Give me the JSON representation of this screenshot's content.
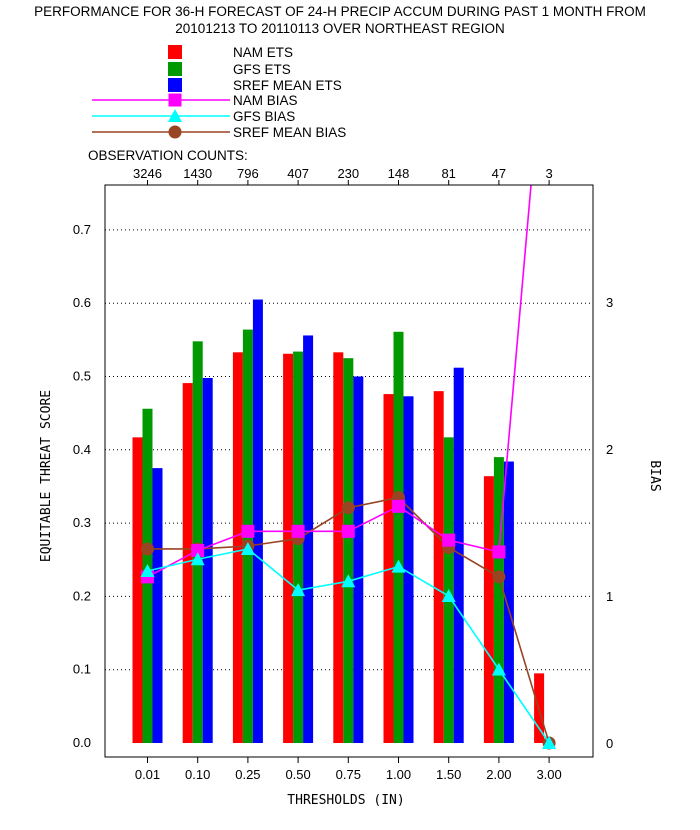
{
  "chart_data": {
    "type": "bar",
    "title_line1": "PERFORMANCE FOR 36-H FORECAST OF 24-H PRECIP ACCUM DURING PAST 1 MONTH FROM",
    "title_line2": "20101213 TO 20110113 OVER NORTHEAST REGION",
    "xlabel": "THRESHOLDS (IN)",
    "ylabel": "EQUITABLE THREAT SCORE",
    "y2label": "BIAS",
    "obs_label": "OBSERVATION COUNTS:",
    "categories": [
      "0.01",
      "0.10",
      "0.25",
      "0.50",
      "0.75",
      "1.00",
      "1.50",
      "2.00",
      "3.00"
    ],
    "observation_counts": [
      "3246",
      "1430",
      "796",
      "407",
      "230",
      "148",
      "81",
      "47",
      "3"
    ],
    "ylim": [
      0,
      0.75
    ],
    "yticks": [
      "0.0",
      "0.1",
      "0.2",
      "0.3",
      "0.4",
      "0.5",
      "0.6",
      "0.7"
    ],
    "y2lim": [
      0,
      4
    ],
    "y2ticks": [
      "0",
      "1",
      "2",
      "3"
    ],
    "grid": "dotted horizontal",
    "legend_placement": "top-left",
    "ets_series": [
      {
        "name": "NAM ETS",
        "color": "#ff0000",
        "values": [
          0.417,
          0.491,
          0.533,
          0.531,
          0.533,
          0.476,
          0.48,
          0.364,
          0.095
        ]
      },
      {
        "name": "GFS ETS",
        "color": "#009900",
        "values": [
          0.456,
          0.548,
          0.564,
          0.534,
          0.525,
          0.561,
          0.417,
          0.39,
          null
        ]
      },
      {
        "name": "SREF MEAN ETS",
        "color": "#0000ff",
        "values": [
          0.375,
          0.498,
          0.605,
          0.556,
          0.5,
          0.473,
          0.512,
          0.384,
          null
        ]
      }
    ],
    "bias_series": [
      {
        "name": "NAM BIAS",
        "color": "#ff00ff",
        "marker": "square",
        "values": [
          1.13,
          1.31,
          1.44,
          1.44,
          1.44,
          1.61,
          1.38,
          1.3,
          5.2
        ]
      },
      {
        "name": "GFS BIAS",
        "color": "#00ffff",
        "marker": "triangle",
        "values": [
          1.17,
          1.25,
          1.32,
          1.04,
          1.1,
          1.2,
          1.0,
          0.5,
          0.0
        ]
      },
      {
        "name": "SREF MEAN BIAS",
        "color": "#994422",
        "marker": "circle",
        "values": [
          1.32,
          1.32,
          1.34,
          1.39,
          1.6,
          1.67,
          1.33,
          1.13,
          0.0
        ]
      }
    ]
  }
}
